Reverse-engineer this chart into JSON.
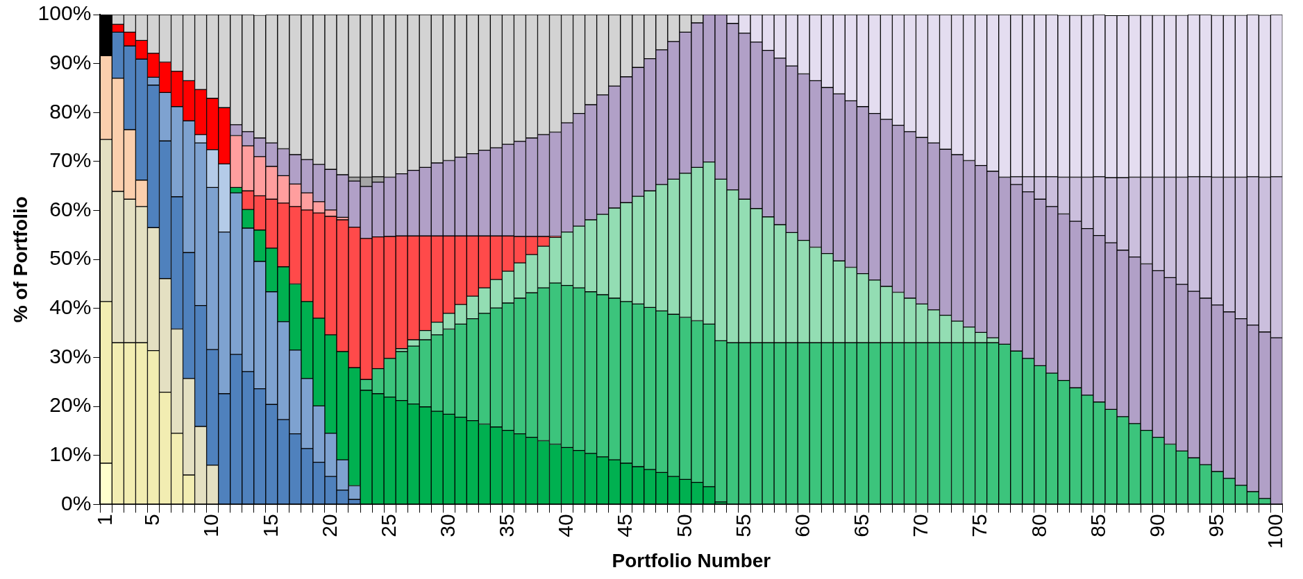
{
  "chart_data": {
    "type": "bar",
    "stacked": true,
    "xlabel": "Portfolio Number",
    "ylabel": "% of Portfolio",
    "categories": [
      "1",
      null,
      null,
      null,
      "5",
      null,
      null,
      null,
      null,
      "10",
      null,
      null,
      null,
      null,
      "15",
      null,
      null,
      null,
      null,
      "20",
      null,
      null,
      null,
      null,
      "25",
      null,
      null,
      null,
      null,
      "30",
      null,
      null,
      null,
      null,
      "35",
      null,
      null,
      null,
      null,
      "40",
      null,
      null,
      null,
      null,
      "45",
      null,
      null,
      null,
      null,
      "50",
      null,
      null,
      null,
      null,
      "55",
      null,
      null,
      null,
      null,
      "60",
      null,
      null,
      null,
      null,
      "65",
      null,
      null,
      null,
      null,
      "70",
      null,
      null,
      null,
      null,
      "75",
      null,
      null,
      null,
      null,
      "80",
      null,
      null,
      null,
      null,
      "85",
      null,
      null,
      null,
      null,
      "90",
      null,
      null,
      null,
      null,
      "95",
      null,
      null,
      null,
      null,
      "100"
    ],
    "ylim": [
      0,
      100
    ],
    "yticks": [
      {
        "value": 0,
        "label": "0%"
      },
      {
        "value": 10,
        "label": "10%"
      },
      {
        "value": 20,
        "label": "20%"
      },
      {
        "value": 30,
        "label": "30%"
      },
      {
        "value": 40,
        "label": "40%"
      },
      {
        "value": 50,
        "label": "50%"
      },
      {
        "value": 60,
        "label": "60%"
      },
      {
        "value": 70,
        "label": "70%"
      },
      {
        "value": 80,
        "label": "80%"
      },
      {
        "value": 90,
        "label": "90%"
      },
      {
        "value": 100,
        "label": "100%"
      }
    ],
    "series": [
      {
        "color": "#ffffcc",
        "values": [
          8.4,
          null,
          null,
          null,
          null,
          null,
          null,
          null,
          null,
          null,
          null,
          null,
          null,
          null,
          null,
          null,
          null,
          null,
          null,
          null,
          null,
          null,
          null,
          null,
          null,
          null,
          null,
          null,
          null,
          null,
          null,
          null,
          null,
          null,
          null,
          null,
          null,
          null,
          null,
          null,
          null,
          null,
          null,
          null,
          null,
          null,
          null,
          null,
          null,
          null,
          null,
          null,
          null,
          null,
          null,
          null,
          null,
          null,
          null,
          null,
          null,
          null,
          null,
          null,
          null,
          null,
          null,
          null,
          null,
          null,
          null,
          null,
          null,
          null,
          null,
          null,
          null,
          null,
          null,
          null,
          null,
          null,
          null,
          null,
          null,
          null,
          null,
          null,
          null,
          null,
          null,
          null,
          null,
          null,
          null,
          null,
          null,
          null,
          null,
          null
        ]
      },
      {
        "color": "#f2edb2",
        "values": [
          33.0,
          33.0,
          33.0,
          33.0,
          31.4,
          22.9,
          14.5,
          6.0,
          null,
          null,
          null,
          null,
          null,
          null,
          null,
          null,
          null,
          null,
          null,
          null,
          null,
          null,
          null,
          null,
          null,
          null,
          null,
          null,
          null,
          null,
          null,
          null,
          null,
          null,
          null,
          null,
          null,
          null,
          null,
          null,
          null,
          null,
          null,
          null,
          null,
          null,
          null,
          null,
          null,
          null,
          null,
          null,
          null,
          null,
          null,
          null,
          null,
          null,
          null,
          null,
          null,
          null,
          null,
          null,
          null,
          null,
          null,
          null,
          null,
          null,
          null,
          null,
          null,
          null,
          null,
          null,
          null,
          null,
          null,
          null,
          null,
          null,
          null,
          null,
          null,
          null,
          null,
          null,
          null,
          null,
          null,
          null,
          null,
          null,
          null,
          null,
          null,
          null,
          null,
          null
        ]
      },
      {
        "color": "#e4e0c2",
        "values": [
          33.1,
          30.9,
          29.3,
          27.8,
          25.1,
          23.2,
          21.3,
          19.7,
          15.9,
          8.0,
          null,
          null,
          null,
          null,
          null,
          null,
          null,
          null,
          null,
          null,
          null,
          null,
          null,
          null,
          null,
          null,
          null,
          null,
          null,
          null,
          null,
          null,
          null,
          null,
          null,
          null,
          null,
          null,
          null,
          null,
          null,
          null,
          null,
          null,
          null,
          null,
          null,
          null,
          null,
          null,
          null,
          null,
          null,
          null,
          null,
          null,
          null,
          null,
          null,
          null,
          null,
          null,
          null,
          null,
          null,
          null,
          null,
          null,
          null,
          null,
          null,
          null,
          null,
          null,
          null,
          null,
          null,
          null,
          null,
          null,
          null,
          null,
          null,
          null,
          null,
          null,
          null,
          null,
          null,
          null,
          null,
          null,
          null,
          null,
          null,
          null,
          null,
          null,
          null,
          null
        ]
      },
      {
        "color": "#fbcfad",
        "values": [
          17.1,
          23.1,
          14.2,
          5.4,
          null,
          null,
          null,
          null,
          null,
          null,
          null,
          null,
          null,
          null,
          null,
          null,
          null,
          null,
          null,
          null,
          null,
          null,
          null,
          null,
          null,
          null,
          null,
          null,
          null,
          null,
          null,
          null,
          null,
          null,
          null,
          null,
          null,
          null,
          null,
          null,
          null,
          null,
          null,
          null,
          null,
          null,
          null,
          null,
          null,
          null,
          null,
          null,
          null,
          null,
          null,
          null,
          null,
          null,
          null,
          null,
          null,
          null,
          null,
          null,
          null,
          null,
          null,
          null,
          null,
          null,
          null,
          null,
          null,
          null,
          null,
          null,
          null,
          null,
          null,
          null,
          null,
          null,
          null,
          null,
          null,
          null,
          null,
          null,
          null,
          null,
          null,
          null,
          null,
          null,
          null,
          null,
          null,
          null,
          null,
          null
        ]
      },
      {
        "color": "#4f81bd",
        "values": [
          null,
          9.4,
          17.1,
          24.7,
          29.1,
          28.1,
          27.0,
          25.7,
          24.7,
          23.6,
          22.6,
          30.6,
          27.1,
          23.6,
          20.4,
          17.3,
          14.4,
          11.4,
          8.6,
          5.7,
          2.9,
          1.0,
          null,
          null,
          null,
          null,
          null,
          null,
          null,
          null,
          null,
          null,
          null,
          null,
          null,
          null,
          null,
          null,
          null,
          null,
          null,
          null,
          null,
          null,
          null,
          null,
          null,
          null,
          null,
          null,
          null,
          null,
          null,
          null,
          null,
          null,
          null,
          null,
          null,
          null,
          null,
          null,
          null,
          null,
          null,
          null,
          null,
          null,
          null,
          null,
          null,
          null,
          null,
          null,
          null,
          null,
          null,
          null,
          null,
          null,
          null,
          null,
          null,
          null,
          null,
          null,
          null,
          null,
          null,
          null,
          null,
          null,
          null,
          null,
          null,
          null,
          null,
          null,
          null,
          null
        ]
      },
      {
        "color": "#7ea2d0",
        "values": [
          null,
          null,
          null,
          null,
          1.6,
          9.9,
          18.4,
          26.9,
          33.2,
          33.1,
          33.0,
          33.0,
          29.3,
          26.0,
          23.0,
          20.0,
          17.1,
          14.3,
          11.5,
          8.8,
          6.2,
          2.8,
          null,
          null,
          null,
          null,
          null,
          null,
          null,
          null,
          null,
          null,
          null,
          null,
          null,
          null,
          null,
          null,
          null,
          null,
          null,
          null,
          null,
          null,
          null,
          null,
          null,
          null,
          null,
          null,
          null,
          null,
          null,
          null,
          null,
          null,
          null,
          null,
          null,
          null,
          null,
          null,
          null,
          null,
          null,
          null,
          null,
          null,
          null,
          null,
          null,
          null,
          null,
          null,
          null,
          null,
          null,
          null,
          null,
          null,
          null,
          null,
          null,
          null,
          null,
          null,
          null,
          null,
          null,
          null,
          null,
          null,
          null,
          null,
          null,
          null,
          null,
          null,
          null,
          null
        ]
      },
      {
        "color": "#b4cbe8",
        "values": [
          null,
          null,
          null,
          null,
          null,
          null,
          null,
          null,
          1.7,
          7.7,
          13.9,
          null,
          null,
          null,
          null,
          null,
          null,
          null,
          null,
          null,
          null,
          null,
          null,
          null,
          null,
          null,
          null,
          null,
          null,
          null,
          null,
          null,
          null,
          null,
          null,
          null,
          null,
          null,
          null,
          null,
          null,
          null,
          null,
          null,
          null,
          null,
          null,
          null,
          null,
          null,
          null,
          null,
          null,
          null,
          null,
          null,
          null,
          null,
          null,
          null,
          null,
          null,
          null,
          null,
          null,
          null,
          null,
          null,
          null,
          null,
          null,
          null,
          null,
          null,
          null,
          null,
          null,
          null,
          null,
          null,
          null,
          null,
          null,
          null,
          null,
          null,
          null,
          null,
          null,
          null,
          null,
          null,
          null,
          null,
          null,
          null,
          null,
          null,
          null,
          null
        ]
      },
      {
        "color": "#00b050",
        "values": [
          null,
          null,
          null,
          null,
          null,
          null,
          null,
          null,
          null,
          null,
          null,
          1.1,
          3.8,
          6.4,
          8.9,
          11.2,
          13.5,
          15.7,
          17.9,
          20.1,
          22.1,
          24.1,
          23.3,
          22.6,
          21.9,
          21.2,
          20.5,
          19.9,
          19.0,
          18.4,
          17.8,
          17.1,
          16.4,
          15.8,
          15.1,
          14.4,
          13.7,
          13.0,
          12.3,
          11.6,
          11.0,
          10.4,
          9.7,
          9.1,
          8.4,
          7.7,
          7.1,
          6.5,
          5.7,
          5.1,
          4.5,
          3.6,
          0.5,
          null,
          null,
          null,
          null,
          null,
          null,
          null,
          null,
          null,
          null,
          null,
          null,
          null,
          null,
          null,
          null,
          null,
          null,
          null,
          null,
          null,
          null,
          null,
          null,
          null,
          null,
          null,
          null,
          null,
          null,
          null,
          null,
          null,
          null,
          null,
          null,
          null,
          null,
          null,
          null,
          null,
          null,
          null,
          null,
          null,
          null,
          null
        ]
      },
      {
        "color": "#3cc47c",
        "values": [
          null,
          null,
          null,
          null,
          null,
          null,
          null,
          null,
          null,
          null,
          null,
          null,
          null,
          null,
          null,
          null,
          null,
          null,
          null,
          null,
          null,
          null,
          2.2,
          5.1,
          7.9,
          10.0,
          11.8,
          13.7,
          15.6,
          17.4,
          19.0,
          20.8,
          22.6,
          24.3,
          26.0,
          27.7,
          29.5,
          31.2,
          32.9,
          33.1,
          33.2,
          33.0,
          33.1,
          33.0,
          33.0,
          33.2,
          33.1,
          33.0,
          33.1,
          33.1,
          33.0,
          33.2,
          32.9,
          33.0,
          33.0,
          33.0,
          33.0,
          33.0,
          33.0,
          33.0,
          33.0,
          33.0,
          33.0,
          33.0,
          33.0,
          33.0,
          33.0,
          33.0,
          33.0,
          33.0,
          33.0,
          33.0,
          33.0,
          33.0,
          33.0,
          33.0,
          32.7,
          31.3,
          29.8,
          28.3,
          26.8,
          25.3,
          23.8,
          22.3,
          20.9,
          19.4,
          17.9,
          16.5,
          15.1,
          13.7,
          12.3,
          10.9,
          9.5,
          8.1,
          6.7,
          5.3,
          3.9,
          2.6,
          1.2,
          null
        ]
      },
      {
        "color": "#93ddb3",
        "values": [
          null,
          null,
          null,
          null,
          null,
          null,
          null,
          null,
          null,
          null,
          null,
          null,
          null,
          null,
          null,
          null,
          null,
          null,
          null,
          null,
          null,
          null,
          null,
          null,
          null,
          0.6,
          1.3,
          1.9,
          2.6,
          3.2,
          4.0,
          4.6,
          5.2,
          5.8,
          6.5,
          7.2,
          7.8,
          8.5,
          9.3,
          10.9,
          12.6,
          14.7,
          16.4,
          18.4,
          20.2,
          22.0,
          23.8,
          25.8,
          27.6,
          29.4,
          31.3,
          33.1,
          33.0,
          31.2,
          29.3,
          27.4,
          25.7,
          24.1,
          22.5,
          20.9,
          19.5,
          18.2,
          16.7,
          15.4,
          14.1,
          12.8,
          11.5,
          10.3,
          9.1,
          7.9,
          6.7,
          5.6,
          4.4,
          3.2,
          2.1,
          1.0,
          null,
          null,
          null,
          null,
          null,
          null,
          null,
          null,
          null,
          null,
          null,
          null,
          null,
          null,
          null,
          null,
          null,
          null,
          null,
          null,
          null,
          null,
          null,
          null
        ]
      },
      {
        "color": "#ff4a4a",
        "values": [
          null,
          null,
          null,
          null,
          null,
          null,
          null,
          null,
          null,
          null,
          null,
          null,
          3.8,
          7.0,
          10.0,
          13.0,
          15.8,
          18.7,
          21.5,
          24.2,
          26.9,
          28.7,
          28.8,
          26.9,
          24.9,
          23.0,
          21.2,
          19.3,
          17.6,
          15.8,
          14.0,
          12.3,
          10.6,
          8.9,
          7.2,
          5.4,
          3.7,
          2.0,
          0.2,
          null,
          null,
          null,
          null,
          null,
          null,
          null,
          null,
          null,
          null,
          null,
          null,
          null,
          null,
          null,
          null,
          null,
          null,
          null,
          null,
          null,
          null,
          null,
          null,
          null,
          null,
          null,
          null,
          null,
          null,
          null,
          null,
          null,
          null,
          null,
          null,
          null,
          null,
          null,
          null,
          null,
          null,
          null,
          null,
          null,
          null,
          null,
          null,
          null,
          null,
          null,
          null,
          null,
          null,
          null,
          null,
          null,
          null,
          null,
          null,
          null
        ]
      },
      {
        "color": "#ff9e9e",
        "values": [
          null,
          null,
          null,
          null,
          null,
          null,
          null,
          null,
          null,
          null,
          null,
          10.6,
          9.2,
          8.0,
          6.7,
          5.6,
          4.6,
          3.5,
          2.3,
          1.3,
          0.5,
          null,
          null,
          null,
          null,
          null,
          null,
          null,
          null,
          null,
          null,
          null,
          null,
          null,
          null,
          null,
          null,
          null,
          null,
          null,
          null,
          null,
          null,
          null,
          null,
          null,
          null,
          null,
          null,
          null,
          null,
          null,
          null,
          null,
          null,
          null,
          null,
          null,
          null,
          null,
          null,
          null,
          null,
          null,
          null,
          null,
          null,
          null,
          null,
          null,
          null,
          null,
          null,
          null,
          null,
          null,
          null,
          null,
          null,
          null,
          null,
          null,
          null,
          null,
          null,
          null,
          null,
          null,
          null,
          null,
          null,
          null,
          null,
          null,
          null,
          null,
          null,
          null,
          null,
          null
        ]
      },
      {
        "color": "#ff0000",
        "values": [
          null,
          1.6,
          2.8,
          3.8,
          4.9,
          6.2,
          7.2,
          8.2,
          9.2,
          10.5,
          11.5,
          null,
          null,
          null,
          null,
          null,
          null,
          null,
          null,
          null,
          null,
          null,
          null,
          null,
          null,
          null,
          null,
          null,
          null,
          null,
          null,
          null,
          null,
          null,
          null,
          null,
          null,
          null,
          null,
          null,
          null,
          null,
          null,
          null,
          null,
          null,
          null,
          null,
          null,
          null,
          null,
          null,
          null,
          null,
          null,
          null,
          null,
          null,
          null,
          null,
          null,
          null,
          null,
          null,
          null,
          null,
          null,
          null,
          null,
          null,
          null,
          null,
          null,
          null,
          null,
          null,
          null,
          null,
          null,
          null,
          null,
          null,
          null,
          null,
          null,
          null,
          null,
          null,
          null,
          null,
          null,
          null,
          null,
          null,
          null,
          null,
          null,
          null,
          null,
          null
        ]
      },
      {
        "color": "#b1a0c7",
        "values": [
          null,
          null,
          null,
          null,
          null,
          null,
          null,
          null,
          null,
          null,
          null,
          2.2,
          2.9,
          3.8,
          4.8,
          5.5,
          6.0,
          6.8,
          7.6,
          8.3,
          8.7,
          9.4,
          10.6,
          11.2,
          12.1,
          12.7,
          13.4,
          14.0,
          14.9,
          15.4,
          16.1,
          16.8,
          17.5,
          18.0,
          18.7,
          19.4,
          20.1,
          20.8,
          21.3,
          22.3,
          23.0,
          23.5,
          24.4,
          24.9,
          25.7,
          26.3,
          27.0,
          27.5,
          28.1,
          28.8,
          29.5,
          30.1,
          33.6,
          34.0,
          33.9,
          34.0,
          34.0,
          34.0,
          34.0,
          34.0,
          34.0,
          33.9,
          34.1,
          34.0,
          34.1,
          34.0,
          34.1,
          34.1,
          34.0,
          34.0,
          34.1,
          33.9,
          34.0,
          34.0,
          34.1,
          34.0,
          34.1,
          34.0,
          34.0,
          34.0,
          34.0,
          34.0,
          34.0,
          34.0,
          34.0,
          34.0,
          34.0,
          34.0,
          34.0,
          34.0,
          34.0,
          34.0,
          34.0,
          34.0,
          34.0,
          34.0,
          34.0,
          34.0,
          34.0,
          34.0
        ]
      },
      {
        "color": "#cbbfdd",
        "values": [
          null,
          null,
          null,
          null,
          null,
          null,
          null,
          null,
          null,
          null,
          null,
          null,
          null,
          null,
          null,
          null,
          null,
          null,
          null,
          null,
          null,
          null,
          null,
          null,
          null,
          null,
          null,
          null,
          null,
          null,
          null,
          null,
          null,
          null,
          null,
          null,
          null,
          null,
          null,
          null,
          null,
          null,
          null,
          null,
          null,
          null,
          null,
          null,
          null,
          null,
          null,
          null,
          null,
          null,
          null,
          null,
          null,
          null,
          null,
          null,
          null,
          null,
          null,
          null,
          null,
          null,
          null,
          null,
          null,
          null,
          null,
          null,
          null,
          null,
          null,
          null,
          null,
          1.6,
          3.1,
          4.6,
          6.1,
          7.5,
          9.0,
          10.5,
          12.0,
          13.3,
          14.8,
          16.3,
          17.7,
          19.1,
          20.5,
          21.9,
          23.4,
          24.8,
          26.1,
          27.5,
          28.9,
          30.3,
          31.6,
          32.9
        ]
      },
      {
        "color": "#a6a6a6",
        "values": [
          null,
          null,
          null,
          null,
          null,
          null,
          null,
          null,
          null,
          null,
          null,
          null,
          null,
          null,
          null,
          null,
          null,
          null,
          null,
          null,
          null,
          0.8,
          1.9,
          1.1,
          null,
          null,
          null,
          null,
          null,
          null,
          null,
          null,
          null,
          null,
          null,
          null,
          null,
          null,
          null,
          null,
          null,
          null,
          null,
          null,
          null,
          null,
          null,
          null,
          null,
          null,
          null,
          null,
          null,
          null,
          null,
          null,
          null,
          null,
          null,
          null,
          null,
          null,
          null,
          null,
          null,
          null,
          null,
          null,
          null,
          null,
          null,
          null,
          null,
          null,
          null,
          null,
          null,
          null,
          null,
          null,
          null,
          null,
          null,
          null,
          null,
          null,
          null,
          null,
          null,
          null,
          null,
          null,
          null,
          null,
          null,
          null,
          null,
          null,
          null,
          null
        ]
      },
      {
        "color": "#d3d3d3",
        "values": [
          null,
          2.0,
          3.6,
          5.3,
          7.9,
          9.7,
          11.6,
          13.5,
          15.3,
          17.1,
          19.0,
          22.5,
          23.9,
          25.1,
          26.2,
          27.4,
          28.6,
          29.6,
          30.6,
          31.6,
          32.7,
          33.2,
          33.2,
          33.1,
          33.2,
          32.5,
          31.8,
          31.2,
          30.3,
          29.8,
          29.1,
          28.4,
          27.7,
          27.2,
          26.5,
          25.9,
          25.2,
          24.5,
          24.0,
          22.1,
          20.2,
          18.4,
          16.4,
          14.6,
          12.7,
          10.8,
          9.0,
          7.2,
          5.5,
          3.6,
          1.7,
          null,
          null,
          null,
          null,
          null,
          null,
          null,
          null,
          null,
          null,
          null,
          null,
          null,
          null,
          null,
          null,
          null,
          null,
          null,
          null,
          null,
          null,
          null,
          null,
          null,
          null,
          null,
          null,
          null,
          null,
          null,
          null,
          null,
          null,
          null,
          null,
          null,
          null,
          null,
          null,
          null,
          null,
          null,
          null,
          null,
          null,
          null,
          null,
          null
        ]
      },
      {
        "color": "#e4ddf0",
        "values": [
          null,
          null,
          null,
          null,
          null,
          null,
          null,
          null,
          null,
          null,
          null,
          null,
          null,
          null,
          null,
          null,
          null,
          null,
          null,
          null,
          null,
          null,
          null,
          null,
          null,
          null,
          null,
          null,
          null,
          null,
          null,
          null,
          null,
          null,
          null,
          null,
          null,
          null,
          null,
          null,
          null,
          null,
          null,
          null,
          null,
          null,
          null,
          null,
          null,
          null,
          null,
          null,
          null,
          1.8,
          3.8,
          5.6,
          7.3,
          8.9,
          10.5,
          12.1,
          13.5,
          14.9,
          16.2,
          17.6,
          18.8,
          20.2,
          21.4,
          22.6,
          23.9,
          25.1,
          26.2,
          27.5,
          28.6,
          29.8,
          30.8,
          32.0,
          33.2,
          33.1,
          33.1,
          33.1,
          33.1,
          33.1,
          33.1,
          33.1,
          33.1,
          33.1,
          33.1,
          33.1,
          33.1,
          33.1,
          33.1,
          33.1,
          33.1,
          33.1,
          33.1,
          33.1,
          33.1,
          33.1,
          33.1,
          33.1
        ]
      },
      {
        "color": "#000000",
        "values": [
          8.4,
          null,
          null,
          null,
          null,
          null,
          null,
          null,
          null,
          null,
          null,
          null,
          null,
          null,
          null,
          null,
          null,
          null,
          null,
          null,
          null,
          null,
          null,
          null,
          null,
          null,
          null,
          null,
          null,
          null,
          null,
          null,
          null,
          null,
          null,
          null,
          null,
          null,
          null,
          null,
          null,
          null,
          null,
          null,
          null,
          null,
          null,
          null,
          null,
          null,
          null,
          null,
          null,
          null,
          null,
          null,
          null,
          null,
          null,
          null,
          null,
          null,
          null,
          null,
          null,
          null,
          null,
          null,
          null,
          null,
          null,
          null,
          null,
          null,
          null,
          null,
          null,
          null,
          null,
          null,
          null,
          null,
          null,
          null,
          null,
          null,
          null,
          null,
          null,
          null,
          null,
          null,
          null,
          null,
          null,
          null,
          null,
          null,
          null,
          null
        ]
      }
    ]
  }
}
